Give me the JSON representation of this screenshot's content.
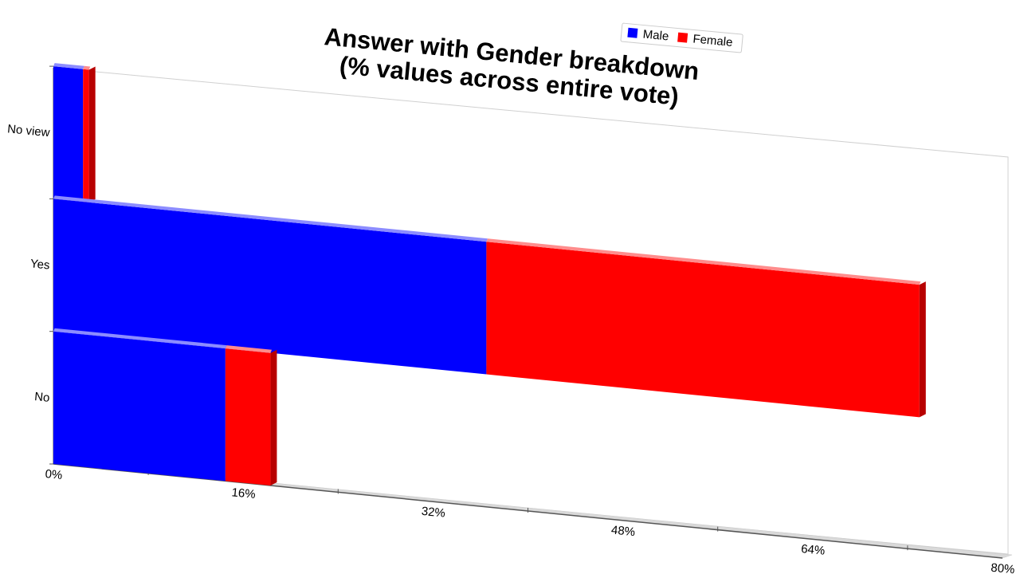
{
  "chart_data": {
    "type": "bar",
    "orientation": "horizontal",
    "stacked": true,
    "title": "Answer with Gender breakdown\n(% values across entire vote)",
    "categories": [
      "No view",
      "Yes",
      "No"
    ],
    "series": [
      {
        "name": "Male",
        "color": "#0000ff",
        "values": [
          2.5,
          36.5,
          14.5
        ]
      },
      {
        "name": "Female",
        "color": "#ff0000",
        "values": [
          0.5,
          36.5,
          3.8
        ]
      }
    ],
    "x_ticks": [
      "0%",
      "16%",
      "32%",
      "48%",
      "64%",
      "80%"
    ],
    "xlim": [
      0,
      80
    ],
    "legend_position": "top-right",
    "grid": false
  }
}
